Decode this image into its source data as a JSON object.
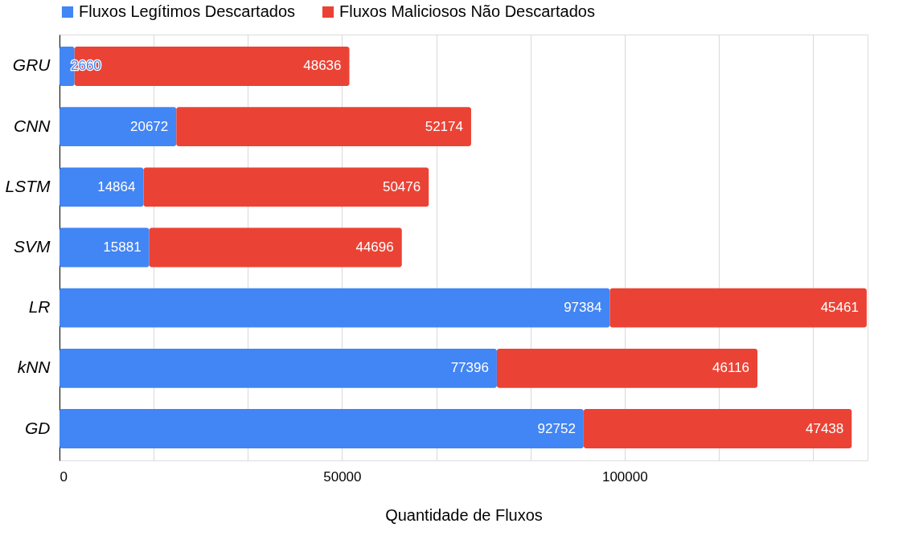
{
  "chart_data": {
    "type": "bar",
    "orientation": "horizontal",
    "stacked": true,
    "data_labels": true,
    "xlabel": "Quantidade de Fluxos",
    "categories": [
      "GRU",
      "CNN",
      "LSTM",
      "SVM",
      "LR",
      "kNN",
      "GD"
    ],
    "series": [
      {
        "name": "Fluxos Legítimos Descartados",
        "color": "#4285f4",
        "values": [
          2660,
          20672,
          14864,
          15881,
          97384,
          77396,
          92752
        ]
      },
      {
        "name": "Fluxos Maliciosos Não Descartados",
        "color": "#ea4335",
        "values": [
          48636,
          52174,
          50476,
          44696,
          45461,
          46116,
          47438
        ]
      }
    ],
    "xlim": [
      0,
      143000
    ],
    "xticks": [
      0,
      {
        "value": 16666.67,
        "label": null
      },
      {
        "value": 33333.33,
        "label": null
      },
      50000,
      {
        "value": 66666.67,
        "label": null
      },
      {
        "value": 83333.33,
        "label": null
      },
      100000,
      {
        "value": 116666.67,
        "label": null
      },
      {
        "value": 133333.33,
        "label": null
      }
    ],
    "grid": "x",
    "legend": "top"
  }
}
